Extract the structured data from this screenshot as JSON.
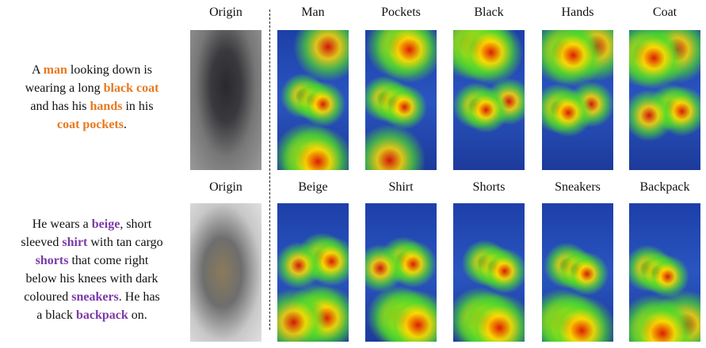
{
  "rows": [
    {
      "highlight_color": "#e8781e",
      "lines": [
        [
          {
            "text": "A "
          },
          {
            "text": "man",
            "em": true
          },
          {
            "text": " looking down is"
          }
        ],
        [
          {
            "text": "wearing a long "
          },
          {
            "text": "black coat",
            "em": true
          }
        ],
        [
          {
            "text": "and has his "
          },
          {
            "text": "hands",
            "em": true
          },
          {
            "text": " in his"
          }
        ],
        [
          {
            "text": "coat pockets",
            "em": true
          },
          {
            "text": "."
          }
        ]
      ],
      "panels": [
        "Origin",
        "Man",
        "Pockets",
        "Black",
        "Hands",
        "Coat"
      ]
    },
    {
      "highlight_color": "#7a3aa8",
      "lines": [
        [
          {
            "text": "He wears a "
          },
          {
            "text": "beige",
            "em": true
          },
          {
            "text": ", short"
          }
        ],
        [
          {
            "text": "sleeved "
          },
          {
            "text": "shirt",
            "em": true
          },
          {
            "text": " with tan cargo"
          }
        ],
        [
          {
            "text": "shorts",
            "em": true
          },
          {
            "text": " that come right"
          }
        ],
        [
          {
            "text": "below his knees with dark"
          }
        ],
        [
          {
            "text": "coloured "
          },
          {
            "text": "sneakers",
            "em": true
          },
          {
            "text": ". He has"
          }
        ],
        [
          {
            "text": "a black "
          },
          {
            "text": "backpack",
            "em": true
          },
          {
            "text": " on."
          }
        ]
      ],
      "panels": [
        "Origin",
        "Beige",
        "Shirt",
        "Shorts",
        "Sneakers",
        "Backpack"
      ]
    }
  ]
}
